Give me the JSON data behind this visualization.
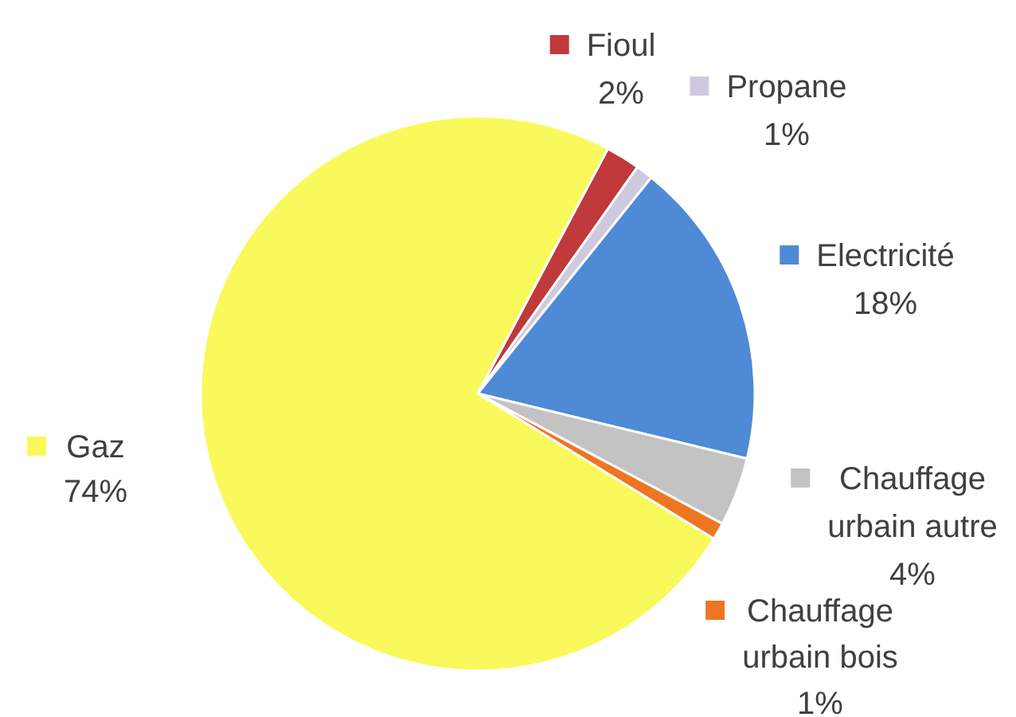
{
  "chart_data": {
    "type": "pie",
    "categories": [
      "Fioul",
      "Propane",
      "Electricité",
      "Chauffage urbain autre",
      "Chauffage urbain bois",
      "Gaz"
    ],
    "values": [
      2,
      1,
      18,
      4,
      1,
      74
    ],
    "colors": [
      "#c0393b",
      "#cfc9df",
      "#4f8ad6",
      "#c3c3c3",
      "#ee7623",
      "#f9f95b"
    ],
    "value_labels": [
      "2%",
      "1%",
      "18%",
      "4%",
      "1%",
      "74%"
    ],
    "legend": "right"
  }
}
